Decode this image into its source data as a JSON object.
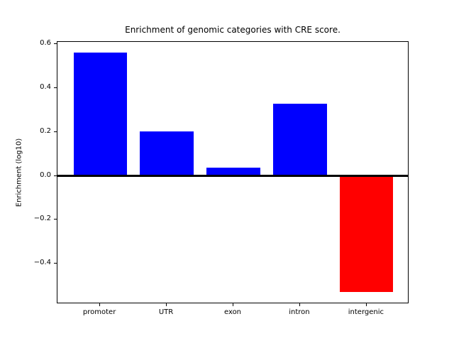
{
  "figure": {
    "background_color": "#ffffff",
    "axes_edge_color": "#000000"
  },
  "chart_data": {
    "type": "bar",
    "title": "Enrichment of genomic categories with CRE score.",
    "xlabel": "",
    "ylabel": "Enrichment (log10)",
    "categories": [
      "promoter",
      "UTR",
      "exon",
      "intron",
      "intergenic"
    ],
    "values": [
      0.56,
      0.203,
      0.036,
      0.328,
      -0.53
    ],
    "bar_colors": [
      "#0000ff",
      "#0000ff",
      "#0000ff",
      "#0000ff",
      "#ff0000"
    ],
    "positive_color": "#0000ff",
    "negative_color": "#ff0000",
    "bar_width_fraction": 0.8,
    "xlim": [
      -0.64,
      4.64
    ],
    "ylim": [
      -0.584,
      0.61
    ],
    "yticks": {
      "values": [
        -0.4,
        -0.2,
        0.0,
        0.2,
        0.4,
        0.6
      ],
      "labels": [
        "−0.4",
        "−0.2",
        "0.0",
        "0.2",
        "0.4",
        "0.6"
      ]
    },
    "zero_line": {
      "value": 0,
      "color": "#000000",
      "linewidth": 3
    },
    "grid": false,
    "legend": null
  }
}
